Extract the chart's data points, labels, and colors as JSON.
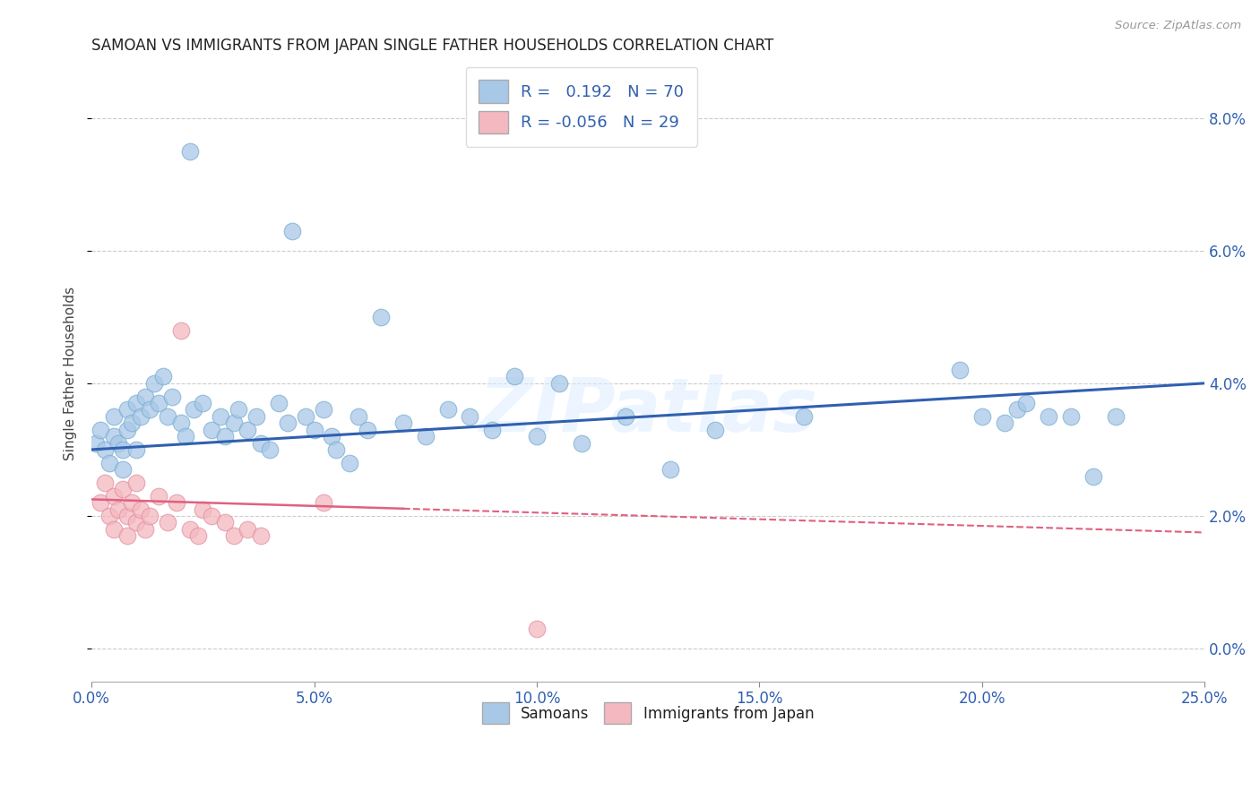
{
  "title": "SAMOAN VS IMMIGRANTS FROM JAPAN SINGLE FATHER HOUSEHOLDS CORRELATION CHART",
  "source": "Source: ZipAtlas.com",
  "xlabel_vals": [
    0.0,
    5.0,
    10.0,
    15.0,
    20.0,
    25.0
  ],
  "ylabel_vals": [
    0.0,
    2.0,
    4.0,
    6.0,
    8.0
  ],
  "xlim": [
    0.0,
    25.0
  ],
  "ylim": [
    -0.5,
    8.8
  ],
  "watermark_text": "ZIPatlas",
  "legend_label1": "Samoans",
  "legend_label2": "Immigrants from Japan",
  "r1": 0.192,
  "n1": 70,
  "r2": -0.056,
  "n2": 29,
  "blue_color": "#a8c8e8",
  "blue_edge_color": "#7aaed0",
  "pink_color": "#f4b8c0",
  "pink_edge_color": "#e090a0",
  "blue_line_color": "#3060b0",
  "pink_line_color": "#e06080",
  "blue_scatter": [
    [
      0.1,
      3.1
    ],
    [
      0.2,
      3.3
    ],
    [
      0.3,
      3.0
    ],
    [
      0.4,
      2.8
    ],
    [
      0.5,
      3.2
    ],
    [
      0.5,
      3.5
    ],
    [
      0.6,
      3.1
    ],
    [
      0.7,
      3.0
    ],
    [
      0.7,
      2.7
    ],
    [
      0.8,
      3.3
    ],
    [
      0.8,
      3.6
    ],
    [
      0.9,
      3.4
    ],
    [
      1.0,
      3.7
    ],
    [
      1.0,
      3.0
    ],
    [
      1.1,
      3.5
    ],
    [
      1.2,
      3.8
    ],
    [
      1.3,
      3.6
    ],
    [
      1.4,
      4.0
    ],
    [
      1.5,
      3.7
    ],
    [
      1.6,
      4.1
    ],
    [
      1.7,
      3.5
    ],
    [
      1.8,
      3.8
    ],
    [
      2.0,
      3.4
    ],
    [
      2.1,
      3.2
    ],
    [
      2.2,
      7.5
    ],
    [
      2.3,
      3.6
    ],
    [
      2.5,
      3.7
    ],
    [
      2.7,
      3.3
    ],
    [
      2.9,
      3.5
    ],
    [
      3.0,
      3.2
    ],
    [
      3.2,
      3.4
    ],
    [
      3.3,
      3.6
    ],
    [
      3.5,
      3.3
    ],
    [
      3.7,
      3.5
    ],
    [
      3.8,
      3.1
    ],
    [
      4.0,
      3.0
    ],
    [
      4.2,
      3.7
    ],
    [
      4.4,
      3.4
    ],
    [
      4.5,
      6.3
    ],
    [
      4.8,
      3.5
    ],
    [
      5.0,
      3.3
    ],
    [
      5.2,
      3.6
    ],
    [
      5.4,
      3.2
    ],
    [
      5.5,
      3.0
    ],
    [
      5.8,
      2.8
    ],
    [
      6.0,
      3.5
    ],
    [
      6.2,
      3.3
    ],
    [
      6.5,
      5.0
    ],
    [
      7.0,
      3.4
    ],
    [
      7.5,
      3.2
    ],
    [
      8.0,
      3.6
    ],
    [
      8.5,
      3.5
    ],
    [
      9.0,
      3.3
    ],
    [
      9.5,
      4.1
    ],
    [
      10.0,
      3.2
    ],
    [
      10.5,
      4.0
    ],
    [
      11.0,
      3.1
    ],
    [
      12.0,
      3.5
    ],
    [
      13.0,
      2.7
    ],
    [
      14.0,
      3.3
    ],
    [
      16.0,
      3.5
    ],
    [
      19.5,
      4.2
    ],
    [
      20.0,
      3.5
    ],
    [
      20.5,
      3.4
    ],
    [
      20.8,
      3.6
    ],
    [
      21.0,
      3.7
    ],
    [
      21.5,
      3.5
    ],
    [
      22.0,
      3.5
    ],
    [
      22.5,
      2.6
    ],
    [
      23.0,
      3.5
    ]
  ],
  "pink_scatter": [
    [
      0.2,
      2.2
    ],
    [
      0.3,
      2.5
    ],
    [
      0.4,
      2.0
    ],
    [
      0.5,
      2.3
    ],
    [
      0.5,
      1.8
    ],
    [
      0.6,
      2.1
    ],
    [
      0.7,
      2.4
    ],
    [
      0.8,
      2.0
    ],
    [
      0.8,
      1.7
    ],
    [
      0.9,
      2.2
    ],
    [
      1.0,
      2.5
    ],
    [
      1.0,
      1.9
    ],
    [
      1.1,
      2.1
    ],
    [
      1.2,
      1.8
    ],
    [
      1.3,
      2.0
    ],
    [
      1.5,
      2.3
    ],
    [
      1.7,
      1.9
    ],
    [
      1.9,
      2.2
    ],
    [
      2.0,
      4.8
    ],
    [
      2.2,
      1.8
    ],
    [
      2.4,
      1.7
    ],
    [
      2.5,
      2.1
    ],
    [
      2.7,
      2.0
    ],
    [
      3.0,
      1.9
    ],
    [
      3.2,
      1.7
    ],
    [
      3.5,
      1.8
    ],
    [
      3.8,
      1.7
    ],
    [
      5.2,
      2.2
    ],
    [
      10.0,
      0.3
    ]
  ],
  "pink_solid_end_x": 7.0
}
